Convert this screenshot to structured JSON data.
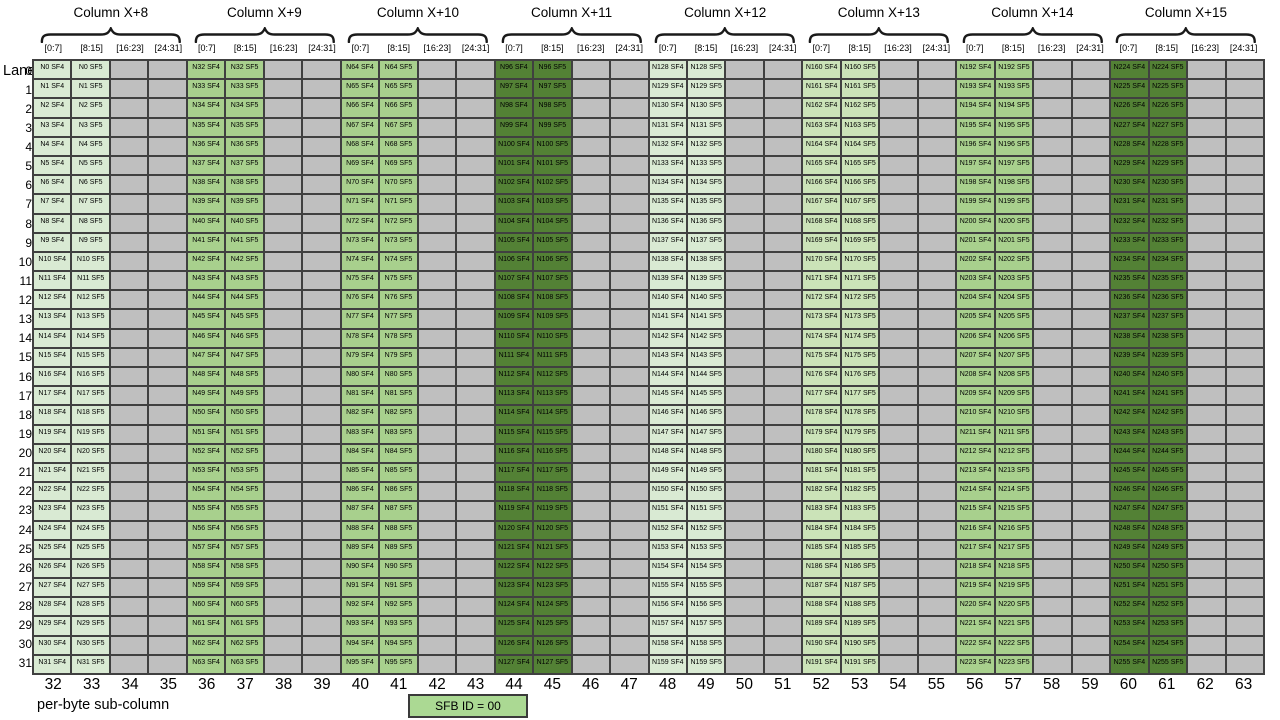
{
  "header": {
    "columns": [
      {
        "title": "Column X+8",
        "n_start": 0,
        "shade": "light"
      },
      {
        "title": "Column X+9",
        "n_start": 32,
        "shade": "medium"
      },
      {
        "title": "Column X+10",
        "n_start": 64,
        "shade": "medium"
      },
      {
        "title": "Column X+11",
        "n_start": 96,
        "shade": "dark"
      },
      {
        "title": "Column X+12",
        "n_start": 128,
        "shade": "light"
      },
      {
        "title": "Column X+13",
        "n_start": 160,
        "shade": "light2"
      },
      {
        "title": "Column X+14",
        "n_start": 192,
        "shade": "medium"
      },
      {
        "title": "Column X+15",
        "n_start": 224,
        "shade": "dark"
      }
    ],
    "sub_headers": [
      "[0:7]",
      "[8:15]",
      "[16:23]",
      "[24:31]"
    ]
  },
  "grid": {
    "lane_axis_label": "Lane",
    "lanes": [
      0,
      1,
      2,
      3,
      4,
      5,
      6,
      7,
      8,
      9,
      10,
      11,
      12,
      13,
      14,
      15,
      16,
      17,
      18,
      19,
      20,
      21,
      22,
      23,
      24,
      25,
      26,
      27,
      28,
      29,
      30,
      31
    ],
    "sf_labels": [
      "SF4",
      "SF5"
    ],
    "cell_format": "N{n} {sf}",
    "filled_subcolumns": [
      0,
      1
    ],
    "empty_subcolumns": [
      2,
      3
    ]
  },
  "footer": {
    "byte_numbers": [
      32,
      33,
      34,
      35,
      36,
      37,
      38,
      39,
      40,
      41,
      42,
      43,
      44,
      45,
      46,
      47,
      48,
      49,
      50,
      51,
      52,
      53,
      54,
      55,
      56,
      57,
      58,
      59,
      60,
      61,
      62,
      63
    ],
    "axis_label": "per-byte sub-column",
    "badge_text": "SFB ID = 00"
  },
  "colors": {
    "light": "#d9ead3",
    "light2": "#cbe3b8",
    "medium": "#a8d08d",
    "dark": "#538135",
    "empty": "#bfbfbf",
    "grid_border": "#404040",
    "badge_fill": "#abd993",
    "text": "#000000"
  }
}
